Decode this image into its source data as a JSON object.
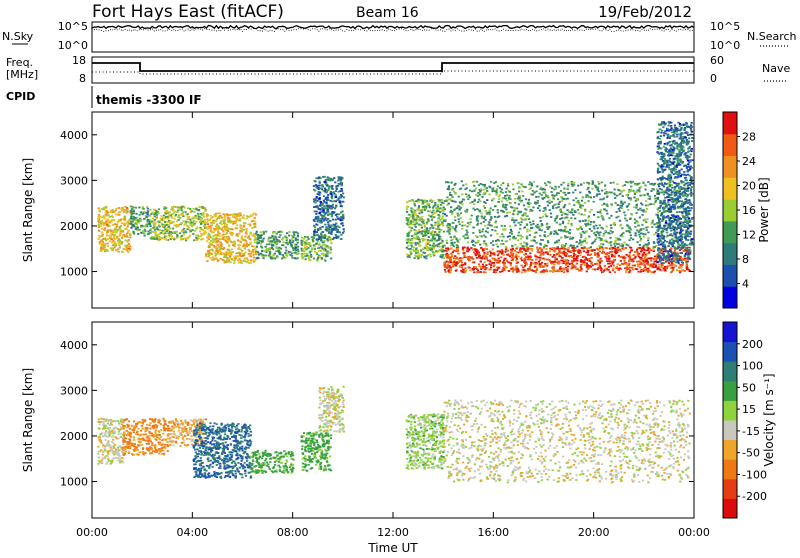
{
  "header": {
    "site": "Fort Hays East (fitACF)",
    "beam": "Beam 16",
    "date": "19/Feb/2012"
  },
  "strip_top": {
    "left_label": "N.Sky",
    "left_ticks": [
      "10^5",
      "10^0"
    ],
    "right_ticks": [
      "10^5",
      "10^0"
    ],
    "right_label": "N.Search"
  },
  "strip_freq": {
    "left_label_1": "Freq.",
    "left_label_2": "[MHz]",
    "left_ticks": [
      "18",
      "8"
    ],
    "right_ticks": [
      "60",
      "0"
    ],
    "right_label": "Nave"
  },
  "cpid": {
    "label": "CPID",
    "text": "themis -3300 IF"
  },
  "x_axis": {
    "label": "Time UT",
    "ticks": [
      "00:00",
      "04:00",
      "08:00",
      "12:00",
      "16:00",
      "20:00",
      "00:00"
    ]
  },
  "colors": {
    "power": [
      "#0000e0",
      "#1b4fb0",
      "#2f7a7a",
      "#3f9b55",
      "#9acd32",
      "#f0c020",
      "#f09020",
      "#f05a14",
      "#e01010"
    ],
    "velocity": [
      "#1414d2",
      "#1b50b4",
      "#2e7e76",
      "#37a040",
      "#8ed23c",
      "#c8c8be",
      "#f0a528",
      "#f07814",
      "#e63c14",
      "#dc0a0a"
    ]
  },
  "chart_data": [
    {
      "type": "heatmap",
      "panel": "power",
      "xlabel": "",
      "ylabel": "Slant Range [km]",
      "xlim": [
        0,
        24
      ],
      "ylim": [
        200,
        4500
      ],
      "yticks": [
        "1000",
        "2000",
        "3000",
        "4000"
      ],
      "colorbar": {
        "label": "Power [dB]",
        "min": 0,
        "max": 32,
        "ticks": [
          "4",
          "8",
          "12",
          "16",
          "20",
          "24",
          "28"
        ]
      },
      "regions": [
        {
          "t0": 0.2,
          "t1": 1.5,
          "r0": 1450,
          "r1": 2450,
          "v": 20
        },
        {
          "t0": 1.5,
          "t1": 2.3,
          "r0": 1800,
          "r1": 2450,
          "v": 12
        },
        {
          "t0": 2.3,
          "t1": 4.5,
          "r0": 1700,
          "r1": 2450,
          "v": 16
        },
        {
          "t0": 4.5,
          "t1": 6.5,
          "r0": 1200,
          "r1": 2300,
          "v": 20
        },
        {
          "t0": 6.5,
          "t1": 8.2,
          "r0": 1300,
          "r1": 1900,
          "v": 12
        },
        {
          "t0": 8.3,
          "t1": 9.5,
          "r0": 1250,
          "r1": 1800,
          "v": 14
        },
        {
          "t0": 8.8,
          "t1": 10.0,
          "r0": 1700,
          "r1": 3100,
          "v": 8
        },
        {
          "t0": 12.5,
          "t1": 14.0,
          "r0": 1300,
          "r1": 2600,
          "v": 14
        },
        {
          "t0": 14.0,
          "t1": 23.8,
          "r0": 1000,
          "r1": 1550,
          "v": 28
        },
        {
          "t0": 14.0,
          "t1": 23.8,
          "r0": 1550,
          "r1": 3000,
          "v": 12
        },
        {
          "t0": 22.5,
          "t1": 23.9,
          "r0": 1200,
          "r1": 4300,
          "v": 8
        }
      ]
    },
    {
      "type": "heatmap",
      "panel": "velocity",
      "xlabel": "Time UT",
      "ylabel": "Slant Range [km]",
      "xlim": [
        0,
        24
      ],
      "ylim": [
        200,
        4500
      ],
      "yticks": [
        "1000",
        "2000",
        "3000",
        "4000"
      ],
      "colorbar": {
        "label": "Velocity [m s⁻¹]",
        "min": -250,
        "max": 250,
        "ticks": [
          "200",
          "100",
          "50",
          "15",
          "-15",
          "-50",
          "-100",
          "-200"
        ]
      },
      "regions": [
        {
          "t0": 0.2,
          "t1": 1.2,
          "r0": 1400,
          "r1": 2400,
          "v": 0
        },
        {
          "t0": 1.2,
          "t1": 3.0,
          "r0": 1600,
          "r1": 2400,
          "v": -60
        },
        {
          "t0": 3.0,
          "t1": 4.5,
          "r0": 1800,
          "r1": 2400,
          "v": -30
        },
        {
          "t0": 4.0,
          "t1": 6.3,
          "r0": 1100,
          "r1": 2300,
          "v": 200
        },
        {
          "t0": 6.3,
          "t1": 8.0,
          "r0": 1200,
          "r1": 1700,
          "v": 70
        },
        {
          "t0": 8.3,
          "t1": 9.5,
          "r0": 1250,
          "r1": 2100,
          "v": 70
        },
        {
          "t0": 9.0,
          "t1": 10.0,
          "r0": 2100,
          "r1": 3100,
          "v": 0
        },
        {
          "t0": 12.5,
          "t1": 14.0,
          "r0": 1300,
          "r1": 2500,
          "v": 30
        },
        {
          "t0": 14.0,
          "t1": 23.8,
          "r0": 1000,
          "r1": 2800,
          "v": 0
        }
      ]
    }
  ]
}
